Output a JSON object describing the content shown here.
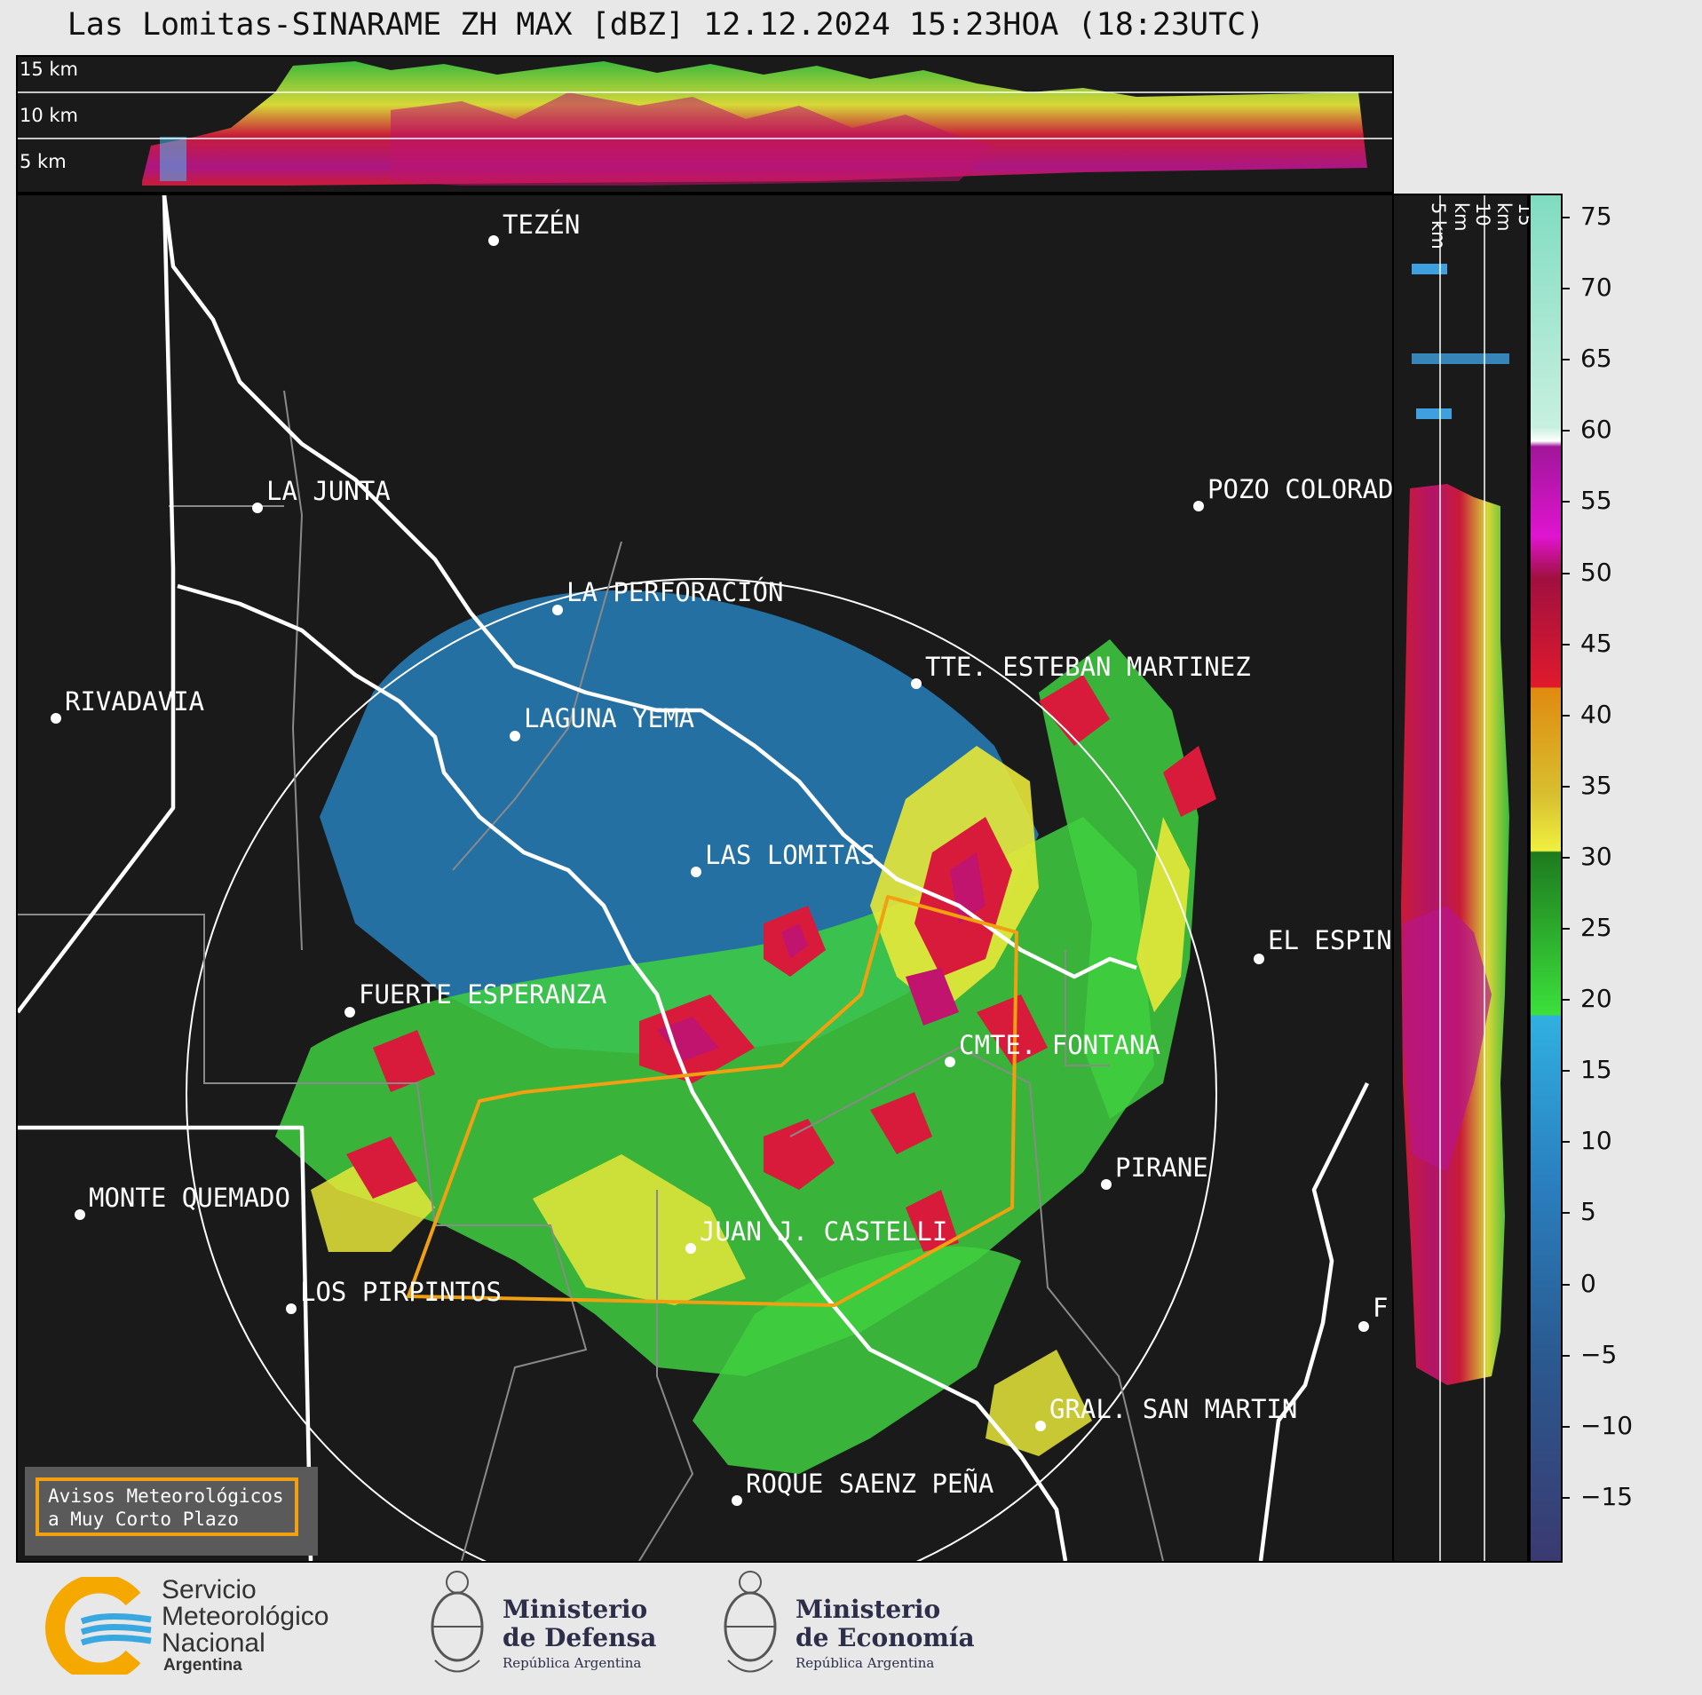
{
  "title": "Las Lomitas-SINARAME ZH MAX [dBZ] 12.12.2024 15:23HOA (18:23UTC)",
  "top_panel_altitudes": [
    "15 km",
    "10 km",
    "5 km"
  ],
  "side_panel_altitudes": [
    "5 km",
    "10 km",
    "15 km"
  ],
  "cities": [
    {
      "name": "TEZÉN"
    },
    {
      "name": "LA JUNTA"
    },
    {
      "name": "POZO COLORAD"
    },
    {
      "name": "LA PERFORACIÓN"
    },
    {
      "name": "TTE. ESTEBAN MARTINEZ"
    },
    {
      "name": "RIVADAVIA"
    },
    {
      "name": "LAGUNA YEMA"
    },
    {
      "name": "LAS LOMITAS"
    },
    {
      "name": "EL ESPIN"
    },
    {
      "name": "FUERTE ESPERANZA"
    },
    {
      "name": "CMTE. FONTANA"
    },
    {
      "name": "PIRANE"
    },
    {
      "name": "MONTE QUEMADO"
    },
    {
      "name": "JUAN J. CASTELLI"
    },
    {
      "name": "LOS PIRPINTOS"
    },
    {
      "name": "GRAL. SAN MARTIN"
    },
    {
      "name": "ROQUE SAENZ PEÑA"
    },
    {
      "name": "F"
    }
  ],
  "colorbar": {
    "ticks": [
      "75",
      "70",
      "65",
      "60",
      "55",
      "50",
      "45",
      "40",
      "35",
      "30",
      "25",
      "20",
      "15",
      "10",
      "5",
      "0",
      "−5",
      "−10",
      "−15"
    ],
    "min": -19.5,
    "max": 76.5
  },
  "avisos": {
    "line1": "Avisos Meteorológicos",
    "line2": "a Muy Corto Plazo"
  },
  "logos": {
    "smn": {
      "line1": "Servicio",
      "line2": "Meteorológico",
      "line3": "Nacional",
      "line4": "Argentina"
    },
    "defensa": {
      "line1": "Ministerio",
      "line2": "de Defensa",
      "line3": "República Argentina"
    },
    "economia": {
      "line1": "Ministerio",
      "line2": "de Economía",
      "line3": "República Argentina"
    }
  }
}
